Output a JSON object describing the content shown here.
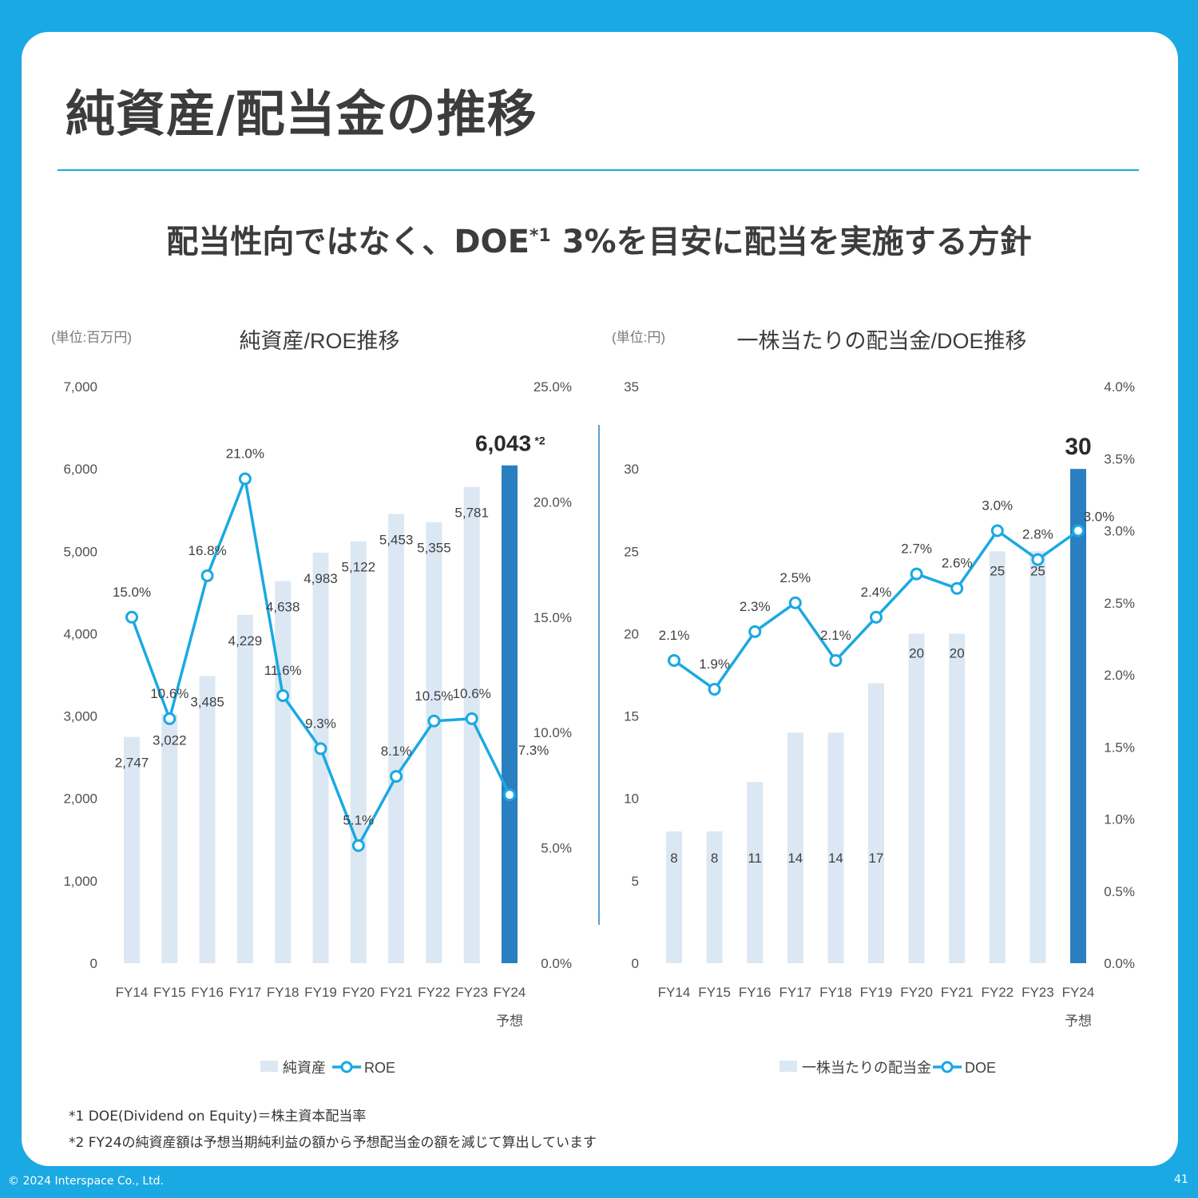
{
  "page": {
    "title": "純資産/配当金の推移",
    "headline_main": "配当性向ではなく、DOE",
    "headline_mark": "*1",
    "headline_rest": "3%を目安に配当を実施する方針",
    "footnotes": [
      "*1  DOE(Dividend on Equity)＝株主資本配当率",
      "*2  FY24の純資産額は予想当期純利益の額から予想配当金の額を減じて算出しています"
    ],
    "copyright": "© 2024 Interspace Co., Ltd.",
    "page_number": "41"
  },
  "colors": {
    "background": "#1aa9e2",
    "bar": "#dbe8f3",
    "bar_highlight": "#2a7fc1",
    "line": "#1aa9e2",
    "text": "#3c3c3c"
  },
  "chart_data": [
    {
      "type": "bar",
      "title": "純資産/ROE推移",
      "unit": "(単位:百万円)",
      "categories": [
        "FY14",
        "FY15",
        "FY16",
        "FY17",
        "FY18",
        "FY19",
        "FY20",
        "FY21",
        "FY22",
        "FY23",
        "FY24"
      ],
      "category_sublabels": [
        "",
        "",
        "",
        "",
        "",
        "",
        "",
        "",
        "",
        "",
        "予想"
      ],
      "series": [
        {
          "name": "純資産",
          "type": "bar",
          "axis": "left",
          "values": [
            2747,
            3022,
            3485,
            4229,
            4638,
            4983,
            5122,
            5453,
            5355,
            5781,
            6043
          ],
          "labels": [
            "2,747",
            "3,022",
            "3,485",
            "4,229",
            "4,638",
            "4,983",
            "5,122",
            "5,453",
            "5,355",
            "5,781",
            "6,043"
          ],
          "highlight_index": 10,
          "highlight_note": "*2"
        },
        {
          "name": "ROE",
          "type": "line",
          "axis": "right",
          "values": [
            15.0,
            10.6,
            16.8,
            21.0,
            11.6,
            9.3,
            5.1,
            8.1,
            10.5,
            10.6,
            7.3
          ],
          "labels": [
            "15.0%",
            "10.6%",
            "16.8%",
            "21.0%",
            "11.6%",
            "9.3%",
            "5.1%",
            "8.1%",
            "10.5%",
            "10.6%",
            "7.3%"
          ]
        }
      ],
      "ylim_left": [
        0,
        7000
      ],
      "yticks_left": [
        "0",
        "1,000",
        "2,000",
        "3,000",
        "4,000",
        "5,000",
        "6,000",
        "7,000"
      ],
      "ylim_right": [
        0,
        25
      ],
      "yticks_right": [
        "0.0%",
        "5.0%",
        "10.0%",
        "15.0%",
        "20.0%",
        "25.0%"
      ],
      "legend": "bottom",
      "grid": false
    },
    {
      "type": "bar",
      "title": "一株当たりの配当金/DOE推移",
      "unit": "(単位:円)",
      "categories": [
        "FY14",
        "FY15",
        "FY16",
        "FY17",
        "FY18",
        "FY19",
        "FY20",
        "FY21",
        "FY22",
        "FY23",
        "FY24"
      ],
      "category_sublabels": [
        "",
        "",
        "",
        "",
        "",
        "",
        "",
        "",
        "",
        "",
        "予想"
      ],
      "series": [
        {
          "name": "一株当たりの配当金",
          "type": "bar",
          "axis": "left",
          "values": [
            8,
            8,
            11,
            14,
            14,
            17,
            20,
            20,
            25,
            25,
            30
          ],
          "labels": [
            "8",
            "8",
            "11",
            "14",
            "14",
            "17",
            "20",
            "20",
            "25",
            "25",
            "30"
          ],
          "highlight_index": 10
        },
        {
          "name": "DOE",
          "type": "line",
          "axis": "right",
          "values": [
            2.1,
            1.9,
            2.3,
            2.5,
            2.1,
            2.4,
            2.7,
            2.6,
            3.0,
            2.8,
            3.0
          ],
          "labels": [
            "2.1%",
            "1.9%",
            "2.3%",
            "2.5%",
            "2.1%",
            "2.4%",
            "2.7%",
            "2.6%",
            "3.0%",
            "2.8%",
            "3.0%"
          ]
        }
      ],
      "ylim_left": [
        0,
        35
      ],
      "yticks_left": [
        "0",
        "5",
        "10",
        "15",
        "20",
        "25",
        "30",
        "35"
      ],
      "ylim_right": [
        0,
        4
      ],
      "yticks_right": [
        "0.0%",
        "0.5%",
        "1.0%",
        "1.5%",
        "2.0%",
        "2.5%",
        "3.0%",
        "3.5%",
        "4.0%"
      ],
      "legend": "bottom",
      "grid": false
    }
  ]
}
